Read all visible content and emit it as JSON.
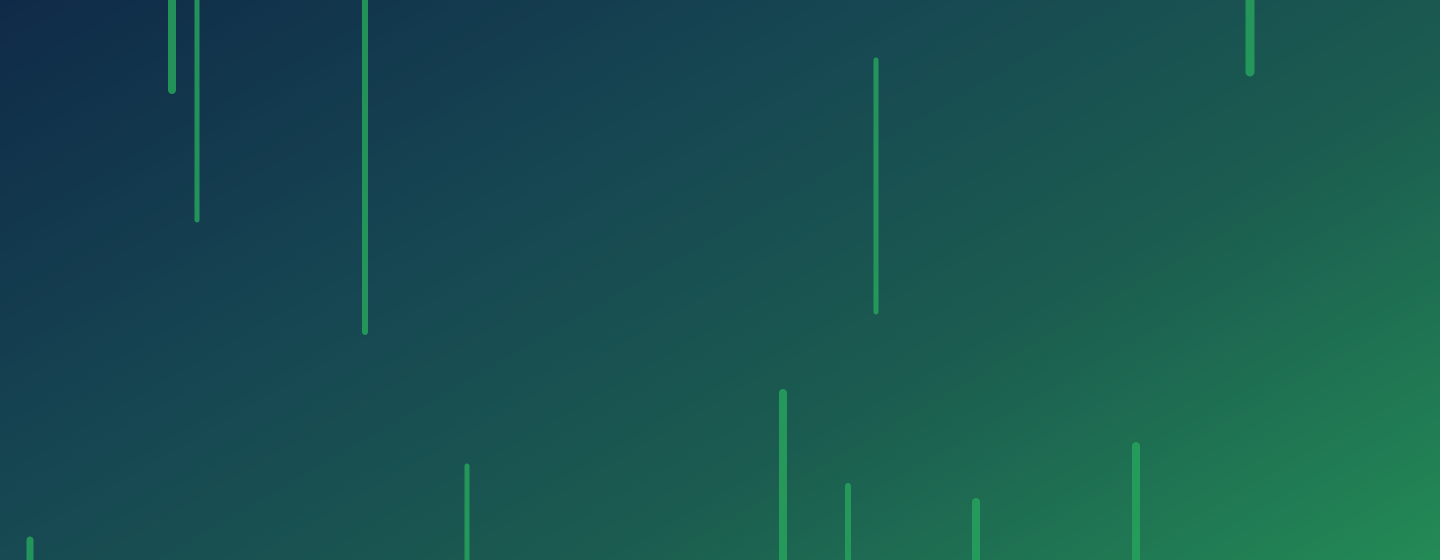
{
  "background": {
    "gradient_colors": [
      "#0f2a48",
      "#164652",
      "#1b5c50",
      "#238a55"
    ]
  },
  "streak_color": "#27a25c",
  "decorative_element": "falling-light-streaks"
}
